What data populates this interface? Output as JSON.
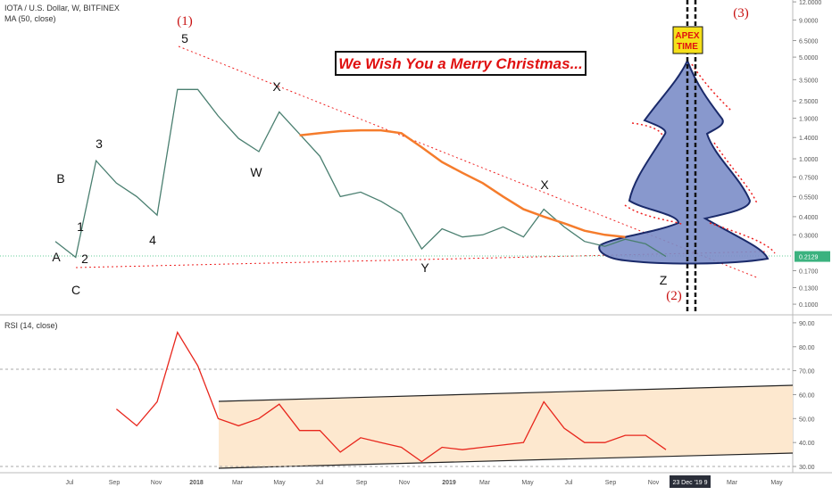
{
  "chart_data": [
    {
      "type": "line",
      "log_scale": true,
      "ylim": [
        0.0857,
        12.36
      ],
      "yticks": [
        {
          "value": 12,
          "label": "12.0000"
        },
        {
          "value": 9,
          "label": "9.0000"
        },
        {
          "value": 6.5,
          "label": "6.5000"
        },
        {
          "value": 5,
          "label": "5.0000"
        },
        {
          "value": 3.5,
          "label": "3.5000"
        },
        {
          "value": 2.5,
          "label": "2.5000"
        },
        {
          "value": 1.9,
          "label": "1.9000"
        },
        {
          "value": 1.4,
          "label": "1.4000"
        },
        {
          "value": 1,
          "label": "1.0000"
        },
        {
          "value": 0.75,
          "label": "0.7500"
        },
        {
          "value": 0.55,
          "label": "0.5500"
        },
        {
          "value": 0.4,
          "label": "0.4000"
        },
        {
          "value": 0.3,
          "label": "0.3000"
        },
        {
          "value": 0.17,
          "label": "0.1700"
        },
        {
          "value": 0.13,
          "label": "0.1300"
        },
        {
          "value": 0.1,
          "label": "0.1000"
        }
      ],
      "xtick_labels": [
        "Jul",
        "Sep",
        "Nov",
        "2018",
        "Mar",
        "May",
        "Jul",
        "Sep",
        "Nov",
        "2019",
        "Mar",
        "May",
        "Jul",
        "Sep",
        "Nov",
        "Mar",
        "May"
      ],
      "cursor_label": "23 Dec '19 9",
      "series": [
        {
          "name": "IOTA / U.S. Dollar, W, BITFINEX",
          "color": "#4a7f70",
          "values": [
            0.27,
            0.21,
            0.97,
            0.68,
            0.55,
            0.41,
            3.0,
            3.0,
            1.97,
            1.38,
            1.12,
            2.1,
            1.48,
            1.04,
            0.55,
            0.59,
            0.51,
            0.42,
            0.24,
            0.33,
            0.29,
            0.3,
            0.34,
            0.29,
            0.45,
            0.34,
            0.27,
            0.25,
            0.28,
            0.26,
            0.2129
          ]
        },
        {
          "name": "MA (50, close)",
          "color": "#f57c2c",
          "values": [
            null,
            null,
            null,
            null,
            null,
            null,
            null,
            null,
            null,
            null,
            null,
            null,
            1.45,
            1.5,
            1.55,
            1.57,
            1.57,
            1.5,
            1.2,
            0.95,
            0.8,
            0.68,
            0.55,
            0.45,
            0.4,
            0.36,
            0.32,
            0.3,
            0.29,
            null,
            null
          ]
        }
      ]
    },
    {
      "type": "line",
      "ylim": [
        27.4,
        92.2
      ],
      "yticks": [
        {
          "value": 30,
          "label": "30.00"
        },
        {
          "value": 40,
          "label": "40.00"
        },
        {
          "value": 50,
          "label": "50.00"
        },
        {
          "value": 60,
          "label": "60.00"
        },
        {
          "value": 70,
          "label": "70.00"
        },
        {
          "value": 80,
          "label": "80.00"
        },
        {
          "value": 90,
          "label": "90.00"
        }
      ],
      "series": [
        {
          "name": "RSI (14, close)",
          "color": "#e8261c",
          "values": [
            null,
            null,
            null,
            54,
            47,
            57,
            86,
            72,
            50,
            47,
            50,
            56,
            45,
            45,
            36,
            42,
            40,
            38,
            32,
            38,
            37,
            38,
            39,
            40,
            57,
            46,
            40,
            40,
            43,
            43,
            37
          ]
        }
      ]
    }
  ],
  "annotations": {
    "greeting": "We Wish You a Merry Christmas...",
    "apex": [
      "APEX",
      "TIME"
    ],
    "waves": [
      "(1)",
      "5",
      "X",
      "W",
      "3",
      "B",
      "1",
      "A",
      "2",
      "C",
      "4",
      "Y",
      "X",
      "Z",
      "(2)",
      "(3)"
    ]
  }
}
